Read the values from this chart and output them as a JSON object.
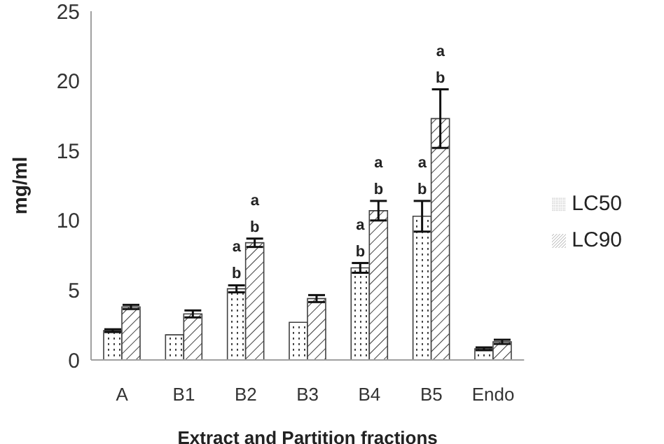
{
  "chart_data": {
    "type": "bar",
    "xlabel": "Extract and Partition fractions",
    "ylabel": "mg/ml",
    "categories": [
      "A",
      "B1",
      "B2",
      "B3",
      "B4",
      "B5",
      "Endo"
    ],
    "series": [
      {
        "name": "LC50",
        "color": "#404040",
        "values": [
          2.1,
          1.8,
          5.1,
          2.7,
          6.6,
          10.3,
          0.8
        ],
        "errors": [
          0.1,
          null,
          0.25,
          null,
          0.35,
          1.1,
          0.1
        ]
      },
      {
        "name": "LC90",
        "color": "#404040",
        "values": [
          3.8,
          3.3,
          8.4,
          4.4,
          10.7,
          17.3,
          1.3
        ],
        "errors": [
          0.15,
          0.25,
          0.3,
          0.25,
          0.7,
          2.1,
          0.15
        ]
      }
    ],
    "ylim": [
      0,
      25
    ],
    "yticks": [
      0,
      5,
      10,
      15,
      20,
      25
    ],
    "grid": false,
    "legend": "right",
    "annotations": [
      {
        "text": "b",
        "x": "B2",
        "y": 5.35
      },
      {
        "text": "a",
        "x": "B2",
        "y": 5.35
      },
      {
        "text": "b",
        "x": "B2",
        "y": 8.7
      },
      {
        "text": "a",
        "x": "B2",
        "y": 8.7
      },
      {
        "text": "b",
        "x": "B4",
        "y": 6.95
      },
      {
        "text": "a",
        "x": "B4",
        "y": 6.95
      },
      {
        "text": "b",
        "x": "B4",
        "y": 11.4
      },
      {
        "text": "a",
        "x": "B4",
        "y": 11.4
      },
      {
        "text": "b",
        "x": "B5",
        "y": 11.4
      },
      {
        "text": "a",
        "x": "B5",
        "y": 11.4
      },
      {
        "text": "b",
        "x": "B5",
        "y": 19.4
      },
      {
        "text": "a",
        "x": "B5",
        "y": 19.4
      }
    ]
  }
}
